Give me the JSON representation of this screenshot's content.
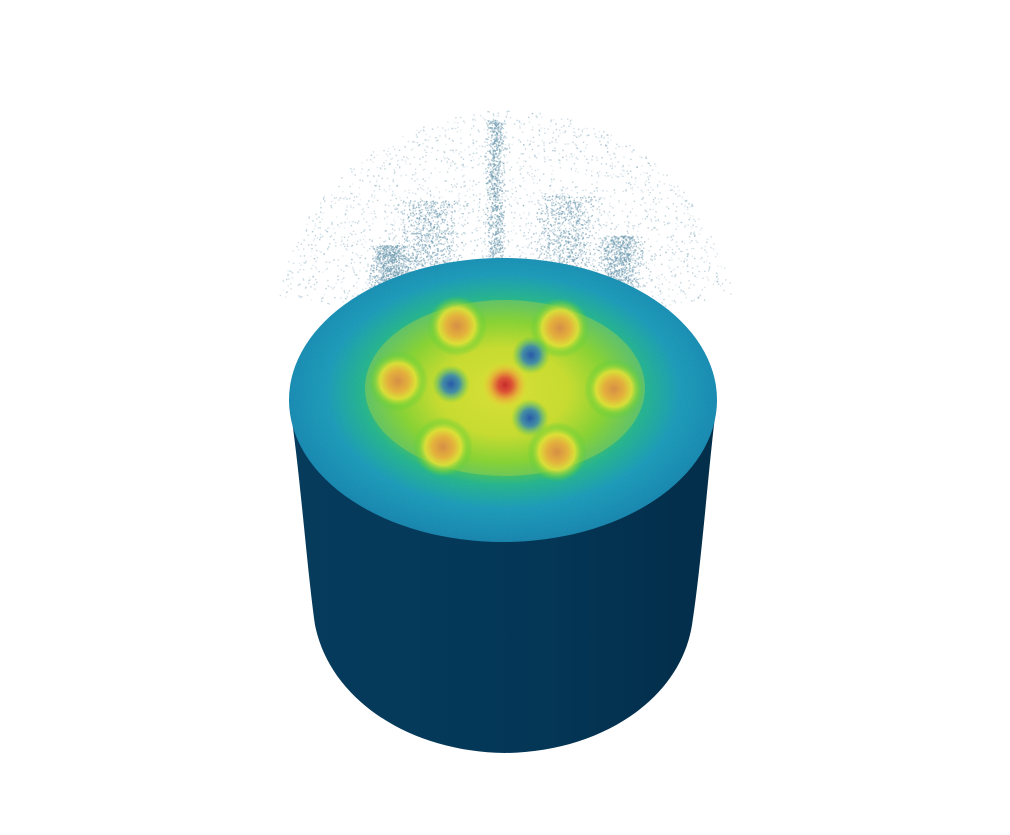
{
  "scene": {
    "background_color": "#ffffff",
    "object": "cylinder",
    "view": "3d-perspective",
    "colormap": [
      "#00245a",
      "#0a6aa0",
      "#0f96b8",
      "#18b28a",
      "#3ccd2c",
      "#a6e01a",
      "#e9e82a",
      "#f0b52a",
      "#e34a2a",
      "#c81e1e"
    ],
    "side_color": "#05395a",
    "side_color_dark": "#032a45",
    "particle_color": "#6f9bb0",
    "top_face_pattern": {
      "hot_spots_outer": 6,
      "cold_spots_inner": 3,
      "center_spot": "hot"
    }
  }
}
